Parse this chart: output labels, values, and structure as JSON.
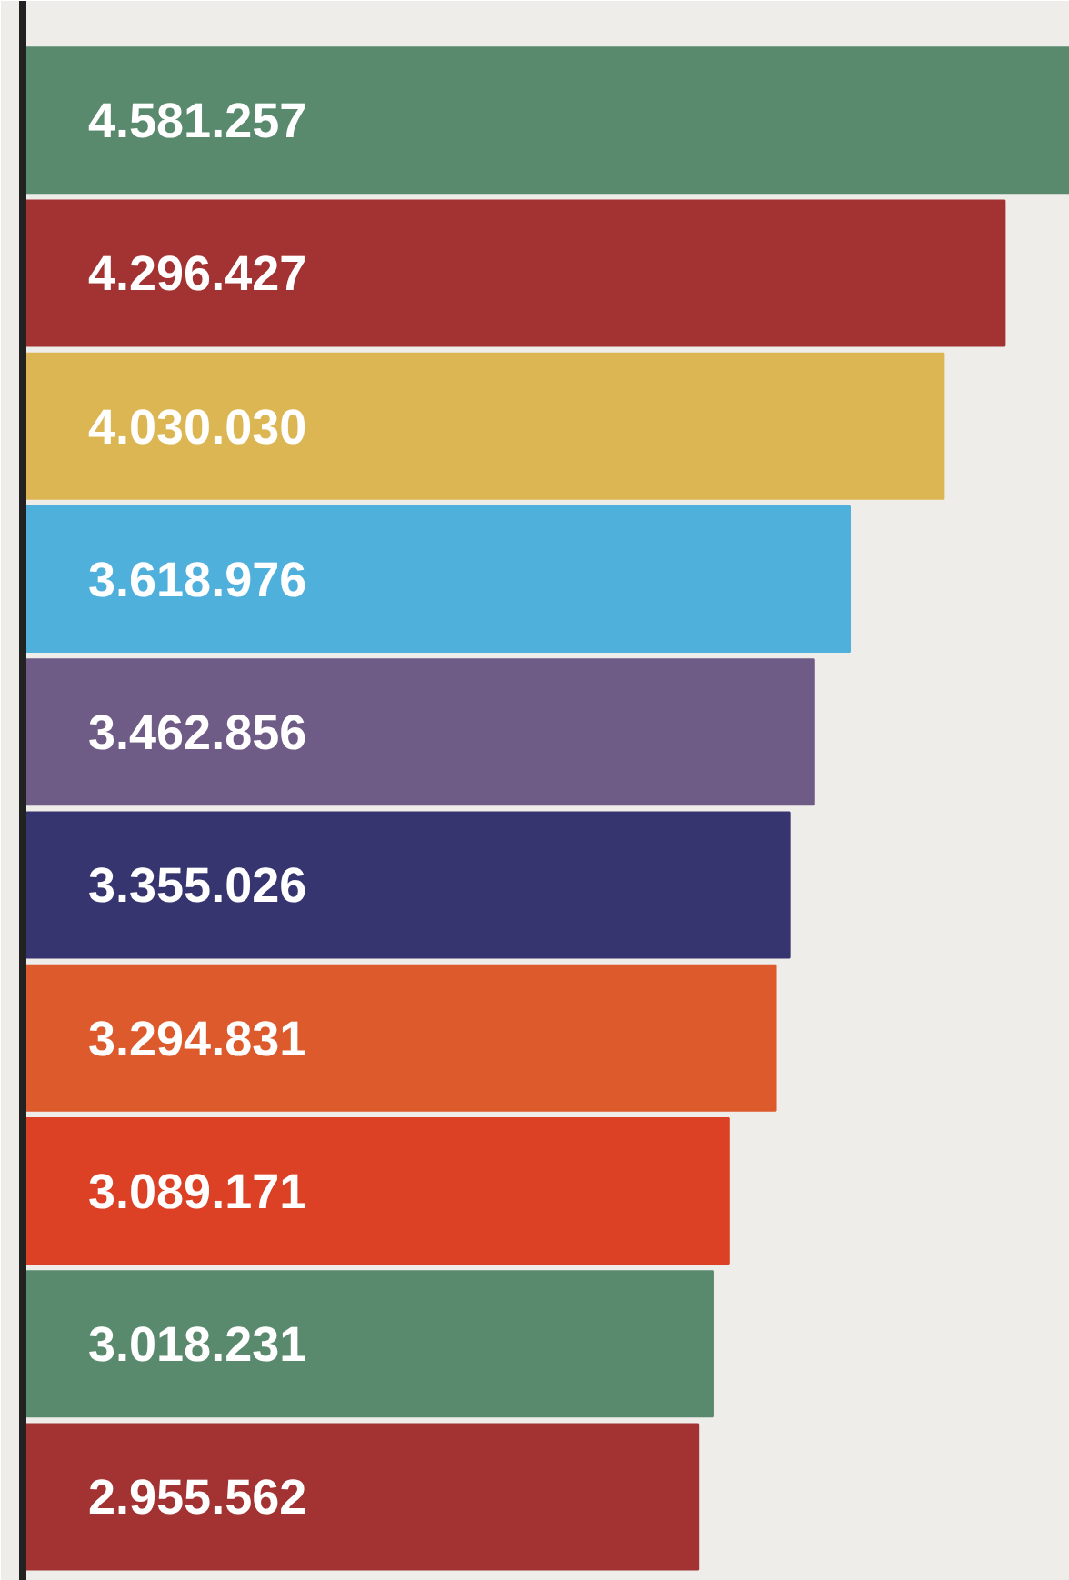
{
  "chart_data": {
    "type": "bar",
    "orientation": "horizontal",
    "categories": [
      null,
      null,
      null,
      null,
      null,
      null,
      null,
      null,
      null,
      null
    ],
    "values": [
      4581257,
      4296427,
      4030030,
      3618976,
      3462856,
      3355026,
      3294831,
      3089171,
      3018231,
      2955562
    ],
    "colors": [
      "#5a8a6e",
      "#a33232",
      "#dcb653",
      "#4fb0dc",
      "#6e5c87",
      "#373570",
      "#dc5a2b",
      "#dc4125",
      "#5a8a6e",
      "#a33232"
    ],
    "value_labels": [
      "4.581.257",
      "4.296.427",
      "4.030.030",
      "3.618.976",
      "3.462.856",
      "3.355.026",
      "3.294.831",
      "3.089.171",
      "3.018.231",
      "2.955.562"
    ],
    "tick_labels": false
  }
}
